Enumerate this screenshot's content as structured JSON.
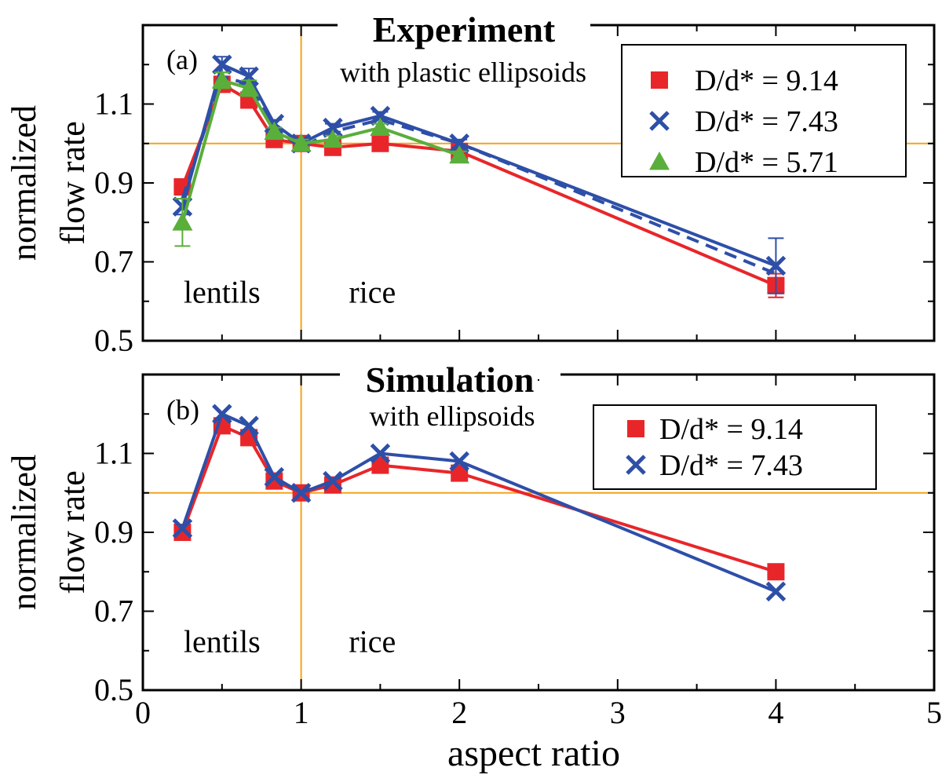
{
  "chart_data": [
    {
      "type": "line",
      "panel_label": "(a)",
      "title": "Experiment",
      "subtitle": "with plastic ellipsoids",
      "xlabel": "",
      "ylabel": "normalized flow rate",
      "ylabel_lines": [
        "normalized",
        "flow rate"
      ],
      "xlim": [
        0,
        5
      ],
      "ylim": [
        0.5,
        1.3
      ],
      "xticks": [
        0,
        1,
        2,
        3,
        4,
        5
      ],
      "yticks": [
        0.5,
        0.7,
        0.9,
        1.1
      ],
      "ytick_labels": [
        "0.5",
        "0.7",
        "0.9",
        "1.1"
      ],
      "reference_lines": {
        "x": 1,
        "y": 1
      },
      "region_labels": [
        {
          "text": "lentils",
          "x": 0.5,
          "y": 0.62
        },
        {
          "text": "rice",
          "x": 1.45,
          "y": 0.62
        }
      ],
      "legend_position": "top-right",
      "series": [
        {
          "name": "D/d* = 9.14",
          "color": "#e8262a",
          "marker": "square",
          "line_style": "solid",
          "x": [
            0.25,
            0.5,
            0.67,
            0.83,
            1.0,
            1.2,
            1.5,
            2.0,
            4.0
          ],
          "values": [
            0.89,
            1.15,
            1.11,
            1.01,
            1.0,
            0.99,
            1.0,
            0.98,
            0.64
          ],
          "error": [
            0.02,
            0.02,
            0.02,
            0.01,
            0.01,
            0.01,
            0.01,
            0.01,
            0.03
          ]
        },
        {
          "name": "D/d* = 7.43",
          "color": "#2e4fa8",
          "marker": "cross",
          "line_style": "solid",
          "x": [
            0.25,
            0.5,
            0.67,
            0.83,
            1.0,
            1.2,
            1.5,
            2.0,
            4.0
          ],
          "values": [
            0.84,
            1.2,
            1.17,
            1.05,
            1.0,
            1.04,
            1.07,
            1.0,
            0.69
          ],
          "error": [
            0.02,
            0.02,
            0.02,
            0.01,
            0.01,
            0.01,
            0.01,
            0.01,
            0.07
          ]
        },
        {
          "name": "D/d* = 7.43 (dashed)",
          "color": "#2e4fa8",
          "marker": "none",
          "line_style": "dashed",
          "in_legend": false,
          "x": [
            0.25,
            0.5,
            0.67,
            0.83,
            1.0,
            1.2,
            1.5,
            2.0,
            4.0
          ],
          "values": [
            0.86,
            1.17,
            1.15,
            1.04,
            0.99,
            1.03,
            1.06,
            1.0,
            0.67
          ]
        },
        {
          "name": "D/d* = 5.71",
          "color": "#5aae3a",
          "marker": "triangle",
          "line_style": "solid",
          "x": [
            0.25,
            0.5,
            0.67,
            0.83,
            1.0,
            1.2,
            1.5,
            2.0
          ],
          "values": [
            0.8,
            1.16,
            1.14,
            1.03,
            1.0,
            1.01,
            1.04,
            0.97
          ],
          "error": [
            0.06,
            0.02,
            0.02,
            0.01,
            0.01,
            0.01,
            0.01,
            0.01
          ]
        }
      ]
    },
    {
      "type": "line",
      "panel_label": "(b)",
      "title": "Simulation",
      "subtitle": "with ellipsoids",
      "xlabel": "aspect ratio",
      "ylabel": "normalized flow rate",
      "ylabel_lines": [
        "normalized",
        "flow rate"
      ],
      "xlim": [
        0,
        5
      ],
      "ylim": [
        0.5,
        1.3
      ],
      "xticks": [
        0,
        1,
        2,
        3,
        4,
        5
      ],
      "xtick_labels": [
        "0",
        "1",
        "2",
        "3",
        "4",
        "5"
      ],
      "yticks": [
        0.5,
        0.7,
        0.9,
        1.1
      ],
      "ytick_labels": [
        "0.5",
        "0.7",
        "0.9",
        "1.1"
      ],
      "reference_lines": {
        "x": 1,
        "y": 1
      },
      "region_labels": [
        {
          "text": "lentils",
          "x": 0.5,
          "y": 0.62
        },
        {
          "text": "rice",
          "x": 1.45,
          "y": 0.62
        }
      ],
      "legend_position": "top-right",
      "series": [
        {
          "name": "D/d* = 9.14",
          "color": "#e8262a",
          "marker": "square",
          "line_style": "solid",
          "x": [
            0.25,
            0.5,
            0.67,
            0.83,
            1.0,
            1.2,
            1.5,
            2.0,
            4.0
          ],
          "values": [
            0.9,
            1.17,
            1.14,
            1.03,
            1.0,
            1.02,
            1.07,
            1.05,
            0.8
          ]
        },
        {
          "name": "D/d* = 7.43",
          "color": "#2e4fa8",
          "marker": "cross",
          "line_style": "solid",
          "x": [
            0.25,
            0.5,
            0.67,
            0.83,
            1.0,
            1.2,
            1.5,
            2.0,
            4.0
          ],
          "values": [
            0.91,
            1.2,
            1.17,
            1.04,
            1.0,
            1.03,
            1.1,
            1.08,
            0.75
          ]
        }
      ]
    }
  ],
  "colors": {
    "reference_line": "#f5a31a",
    "frame": "#000000"
  }
}
